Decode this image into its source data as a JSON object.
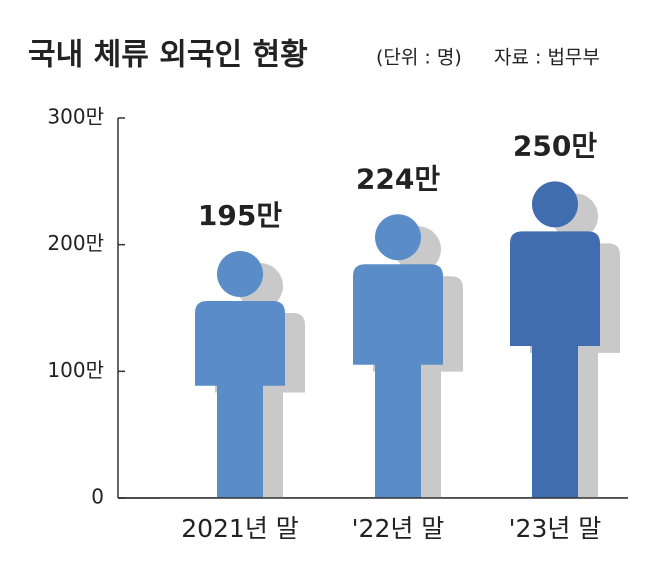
{
  "chart_data": {
    "type": "pictorial-bar",
    "title": "국내 체류 외국인 현황",
    "subtitle": "(단위 : 명)",
    "source": "자료 : 법무부",
    "categories": [
      "2021년 말",
      "'22년 말",
      "'23년 말"
    ],
    "values": [
      195,
      224,
      250
    ],
    "value_labels": [
      "195만",
      "224만",
      "250만"
    ],
    "colors": [
      "#5a8dc8",
      "#5a8dc8",
      "#3f6db0"
    ],
    "ylim": [
      0,
      300
    ],
    "yticks": [
      0,
      {
        "value": 100,
        "label": "100만"
      },
      {
        "value": 200,
        "label": "200만"
      },
      {
        "value": 300,
        "label": "300만"
      }
    ]
  }
}
